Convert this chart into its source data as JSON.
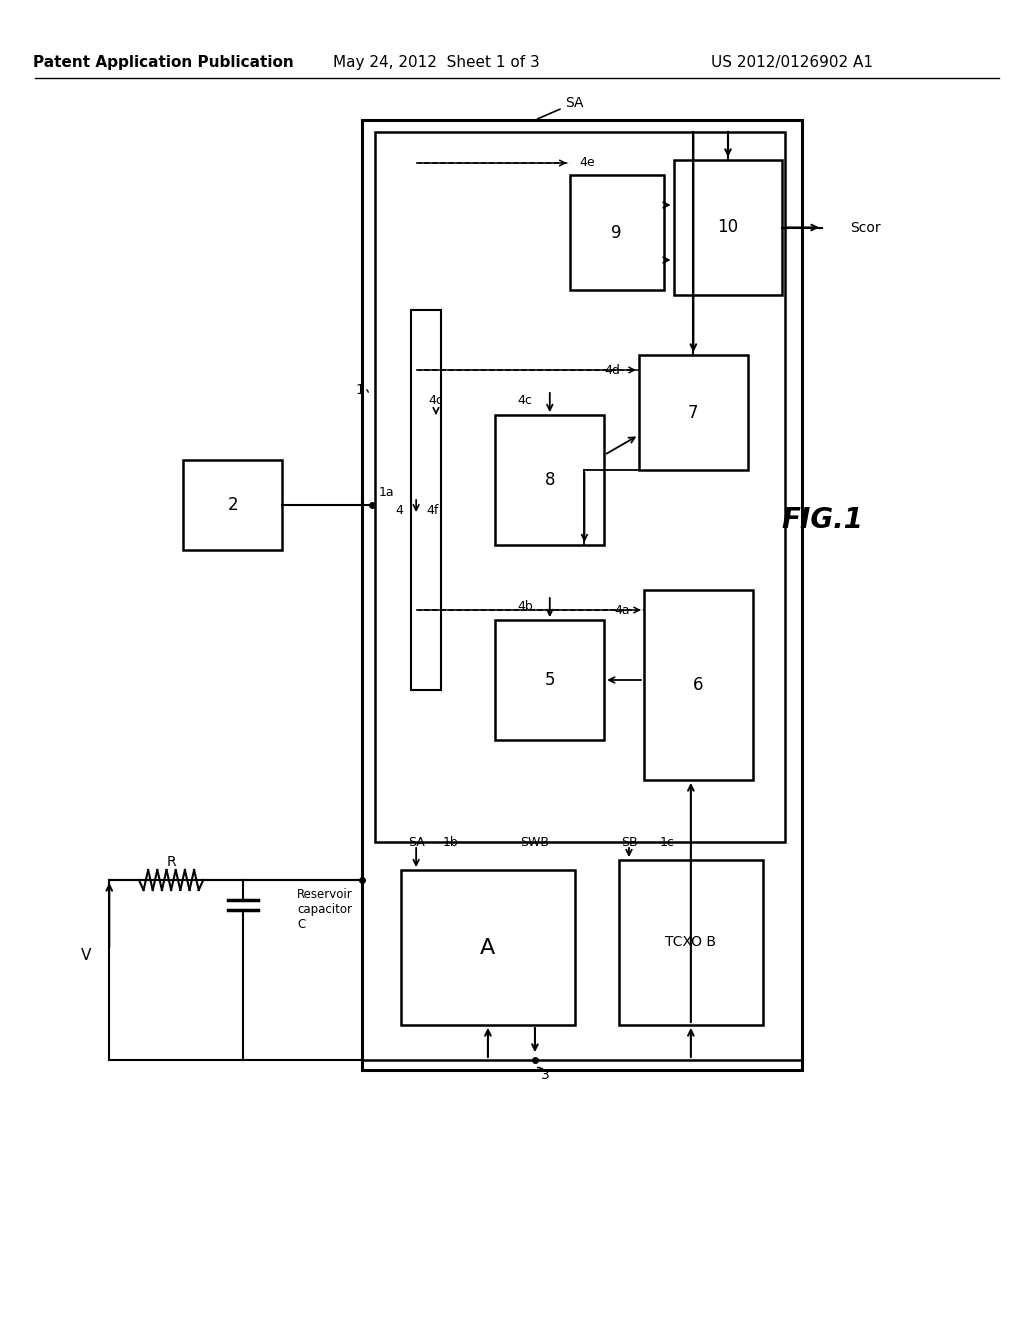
{
  "bg_color": "#ffffff",
  "header_left": "Patent Application Publication",
  "header_mid": "May 24, 2012  Sheet 1 of 3",
  "header_right": "US 2012/0126902 A1",
  "fig_label": "FIG.1"
}
